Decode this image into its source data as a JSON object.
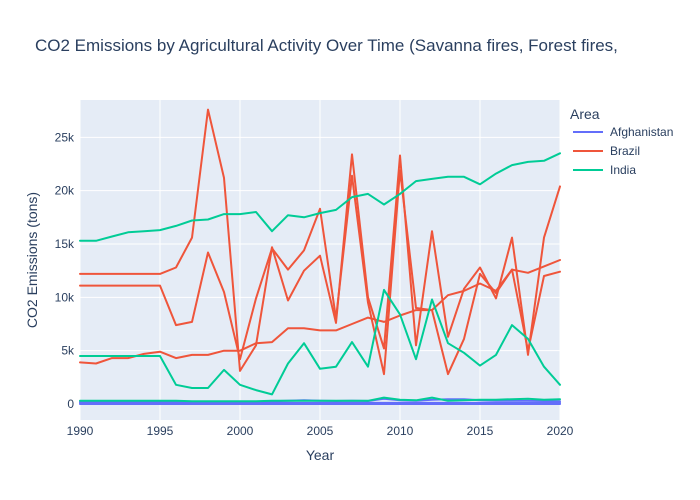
{
  "chart_data": {
    "type": "line",
    "title": "CO2 Emissions by Agricultural Activity Over Time (Savanna fires, Forest fires,",
    "xlabel": "Year",
    "ylabel": "CO2 Emissions (tons)",
    "xlim": [
      1990,
      2020
    ],
    "ylim": [
      -1500,
      28500
    ],
    "x_ticks": [
      1990,
      1995,
      2000,
      2005,
      2010,
      2015,
      2020
    ],
    "y_ticks": [
      0,
      5000,
      10000,
      15000,
      20000,
      25000
    ],
    "y_tick_labels": [
      "0",
      "5k",
      "10k",
      "15k",
      "20k",
      "25k"
    ],
    "grid": true,
    "legend": {
      "title": "Area",
      "placement": "right"
    },
    "years": [
      1990,
      1991,
      1992,
      1993,
      1994,
      1995,
      1996,
      1997,
      1998,
      1999,
      2000,
      2001,
      2002,
      2003,
      2004,
      2005,
      2006,
      2007,
      2008,
      2009,
      2010,
      2011,
      2012,
      2013,
      2014,
      2015,
      2016,
      2017,
      2018,
      2019,
      2020
    ],
    "series": [
      {
        "name": "Afghanistan",
        "legend": true,
        "color": "#636efa",
        "values": [
          100,
          100,
          100,
          100,
          100,
          100,
          100,
          100,
          100,
          100,
          100,
          100,
          100,
          100,
          100,
          100,
          100,
          100,
          100,
          100,
          100,
          100,
          100,
          100,
          100,
          100,
          100,
          100,
          100,
          100,
          100
        ]
      },
      {
        "name": "Afghanistan",
        "legend": false,
        "color": "#636efa",
        "values": [
          0,
          0,
          0,
          0,
          0,
          0,
          0,
          0,
          0,
          0,
          0,
          0,
          0,
          0,
          0,
          0,
          0,
          0,
          0,
          0,
          0,
          0,
          0,
          0,
          0,
          0,
          0,
          0,
          0,
          0,
          0
        ]
      },
      {
        "name": "Afghanistan",
        "legend": false,
        "color": "#636efa",
        "values": [
          200,
          200,
          200,
          200,
          200,
          200,
          150,
          150,
          180,
          200,
          150,
          200,
          250,
          300,
          350,
          300,
          280,
          300,
          280,
          500,
          350,
          300,
          400,
          450,
          450,
          350,
          300,
          300,
          300,
          280,
          250
        ]
      },
      {
        "name": "Brazil",
        "legend": true,
        "color": "#ef553b",
        "values": [
          12200,
          12200,
          12200,
          12200,
          12200,
          12200,
          12800,
          15600,
          27600,
          21200,
          3100,
          5500,
          14700,
          9700,
          12500,
          13900,
          7600,
          23400,
          10000,
          5200,
          23300,
          5500,
          16200,
          6300,
          10800,
          12800,
          9900,
          15600,
          4600,
          15600,
          20400
        ]
      },
      {
        "name": "Brazil",
        "legend": false,
        "color": "#ef553b",
        "values": [
          11100,
          11100,
          11100,
          11100,
          11100,
          11100,
          7400,
          7700,
          14200,
          10500,
          4200,
          9900,
          14600,
          12600,
          14400,
          18300,
          8000,
          21400,
          9500,
          2800,
          21900,
          9000,
          8800,
          2800,
          6100,
          12200,
          10400,
          12600,
          5000,
          12000,
          12400
        ]
      },
      {
        "name": "Brazil",
        "legend": false,
        "color": "#ef553b",
        "values": [
          3900,
          3800,
          4300,
          4300,
          4700,
          4900,
          4300,
          4600,
          4600,
          5000,
          5000,
          5700,
          5800,
          7100,
          7100,
          6900,
          6900,
          7500,
          8100,
          7700,
          8300,
          8800,
          8800,
          10200,
          10600,
          11300,
          10600,
          12600,
          12300,
          12900,
          13500
        ]
      },
      {
        "name": "India",
        "legend": true,
        "color": "#00cc96",
        "values": [
          15300,
          15300,
          15700,
          16100,
          16200,
          16300,
          16700,
          17200,
          17300,
          17800,
          17800,
          18000,
          16200,
          17700,
          17500,
          17900,
          18200,
          19400,
          19700,
          18700,
          19700,
          20900,
          21100,
          21300,
          21300,
          20600,
          21600,
          22400,
          22700,
          22800,
          23500
        ]
      },
      {
        "name": "India",
        "legend": false,
        "color": "#00cc96",
        "values": [
          4500,
          4500,
          4500,
          4500,
          4500,
          4500,
          1800,
          1500,
          1500,
          3200,
          1800,
          1300,
          900,
          3800,
          5700,
          3300,
          3500,
          5800,
          3500,
          10700,
          8400,
          4200,
          9800,
          5700,
          4800,
          3600,
          4600,
          7400,
          6100,
          3500,
          1800
        ]
      },
      {
        "name": "India",
        "legend": false,
        "color": "#00cc96",
        "values": [
          300,
          300,
          300,
          300,
          300,
          300,
          300,
          250,
          250,
          250,
          250,
          250,
          300,
          300,
          300,
          300,
          300,
          300,
          300,
          600,
          400,
          350,
          600,
          300,
          350,
          400,
          400,
          450,
          500,
          400,
          450
        ]
      }
    ]
  }
}
